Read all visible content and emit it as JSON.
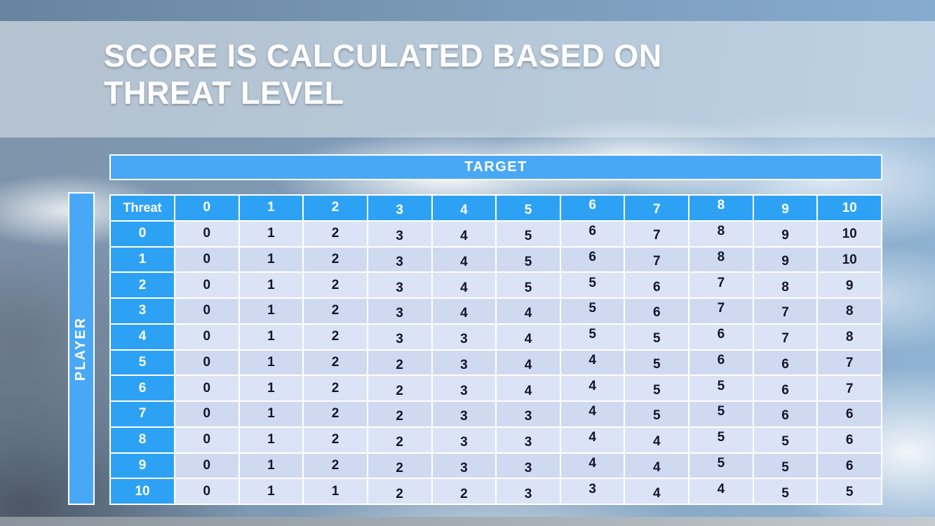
{
  "slide": {
    "title_lines": [
      "SCORE IS CALCULATED BASED ON",
      "THREAT LEVEL"
    ]
  },
  "matrix": {
    "target_axis_label": "TARGET",
    "player_axis_label": "PLAYER",
    "corner_label": "Threat",
    "column_headers": [
      "0",
      "1",
      "2",
      "3",
      "4",
      "5",
      "6",
      "7",
      "8",
      "9",
      "10"
    ],
    "rows": [
      {
        "header": "0",
        "values": [
          "0",
          "1",
          "2",
          "3",
          "4",
          "5",
          "6",
          "7",
          "8",
          "9",
          "10"
        ]
      },
      {
        "header": "1",
        "values": [
          "0",
          "1",
          "2",
          "3",
          "4",
          "5",
          "6",
          "7",
          "8",
          "9",
          "10"
        ]
      },
      {
        "header": "2",
        "values": [
          "0",
          "1",
          "2",
          "3",
          "4",
          "5",
          "5",
          "6",
          "7",
          "8",
          "9"
        ]
      },
      {
        "header": "3",
        "values": [
          "0",
          "1",
          "2",
          "3",
          "4",
          "4",
          "5",
          "6",
          "7",
          "7",
          "8"
        ]
      },
      {
        "header": "4",
        "values": [
          "0",
          "1",
          "2",
          "3",
          "3",
          "4",
          "5",
          "5",
          "6",
          "7",
          "8"
        ]
      },
      {
        "header": "5",
        "values": [
          "0",
          "1",
          "2",
          "2",
          "3",
          "4",
          "4",
          "5",
          "6",
          "6",
          "7"
        ]
      },
      {
        "header": "6",
        "values": [
          "0",
          "1",
          "2",
          "2",
          "3",
          "4",
          "4",
          "5",
          "5",
          "6",
          "7"
        ]
      },
      {
        "header": "7",
        "values": [
          "0",
          "1",
          "2",
          "2",
          "3",
          "3",
          "4",
          "5",
          "5",
          "6",
          "6"
        ]
      },
      {
        "header": "8",
        "values": [
          "0",
          "1",
          "2",
          "2",
          "3",
          "3",
          "4",
          "4",
          "5",
          "5",
          "6"
        ]
      },
      {
        "header": "9",
        "values": [
          "0",
          "1",
          "2",
          "2",
          "3",
          "3",
          "4",
          "4",
          "5",
          "5",
          "6"
        ]
      },
      {
        "header": "10",
        "values": [
          "0",
          "1",
          "1",
          "2",
          "2",
          "3",
          "3",
          "4",
          "4",
          "5",
          "5"
        ]
      }
    ]
  },
  "chart_data": {
    "type": "table",
    "title": "Score matrix by threat level",
    "row_axis": "PLAYER (Threat)",
    "column_axis": "TARGET",
    "columns": [
      0,
      1,
      2,
      3,
      4,
      5,
      6,
      7,
      8,
      9,
      10
    ],
    "rows": [
      0,
      1,
      2,
      3,
      4,
      5,
      6,
      7,
      8,
      9,
      10
    ],
    "values": [
      [
        0,
        1,
        2,
        3,
        4,
        5,
        6,
        7,
        8,
        9,
        10
      ],
      [
        0,
        1,
        2,
        3,
        4,
        5,
        6,
        7,
        8,
        9,
        10
      ],
      [
        0,
        1,
        2,
        3,
        4,
        5,
        5,
        6,
        7,
        8,
        9
      ],
      [
        0,
        1,
        2,
        3,
        4,
        4,
        5,
        6,
        7,
        7,
        8
      ],
      [
        0,
        1,
        2,
        3,
        3,
        4,
        5,
        5,
        6,
        7,
        8
      ],
      [
        0,
        1,
        2,
        2,
        3,
        4,
        4,
        5,
        6,
        6,
        7
      ],
      [
        0,
        1,
        2,
        2,
        3,
        4,
        4,
        5,
        5,
        6,
        7
      ],
      [
        0,
        1,
        2,
        2,
        3,
        3,
        4,
        5,
        5,
        6,
        6
      ],
      [
        0,
        1,
        2,
        2,
        3,
        3,
        4,
        4,
        5,
        5,
        6
      ],
      [
        0,
        1,
        2,
        2,
        3,
        3,
        4,
        4,
        5,
        5,
        6
      ],
      [
        0,
        1,
        1,
        2,
        2,
        3,
        3,
        4,
        4,
        5,
        5
      ]
    ]
  },
  "colors": {
    "accent-blue": "#2da2f4",
    "bar-blue": "#49a8f6",
    "cell-light": "#dbe4f6",
    "cell-alt": "#cfdaf1",
    "cell-text": "#15152a",
    "grid-line": "#ffffff"
  }
}
